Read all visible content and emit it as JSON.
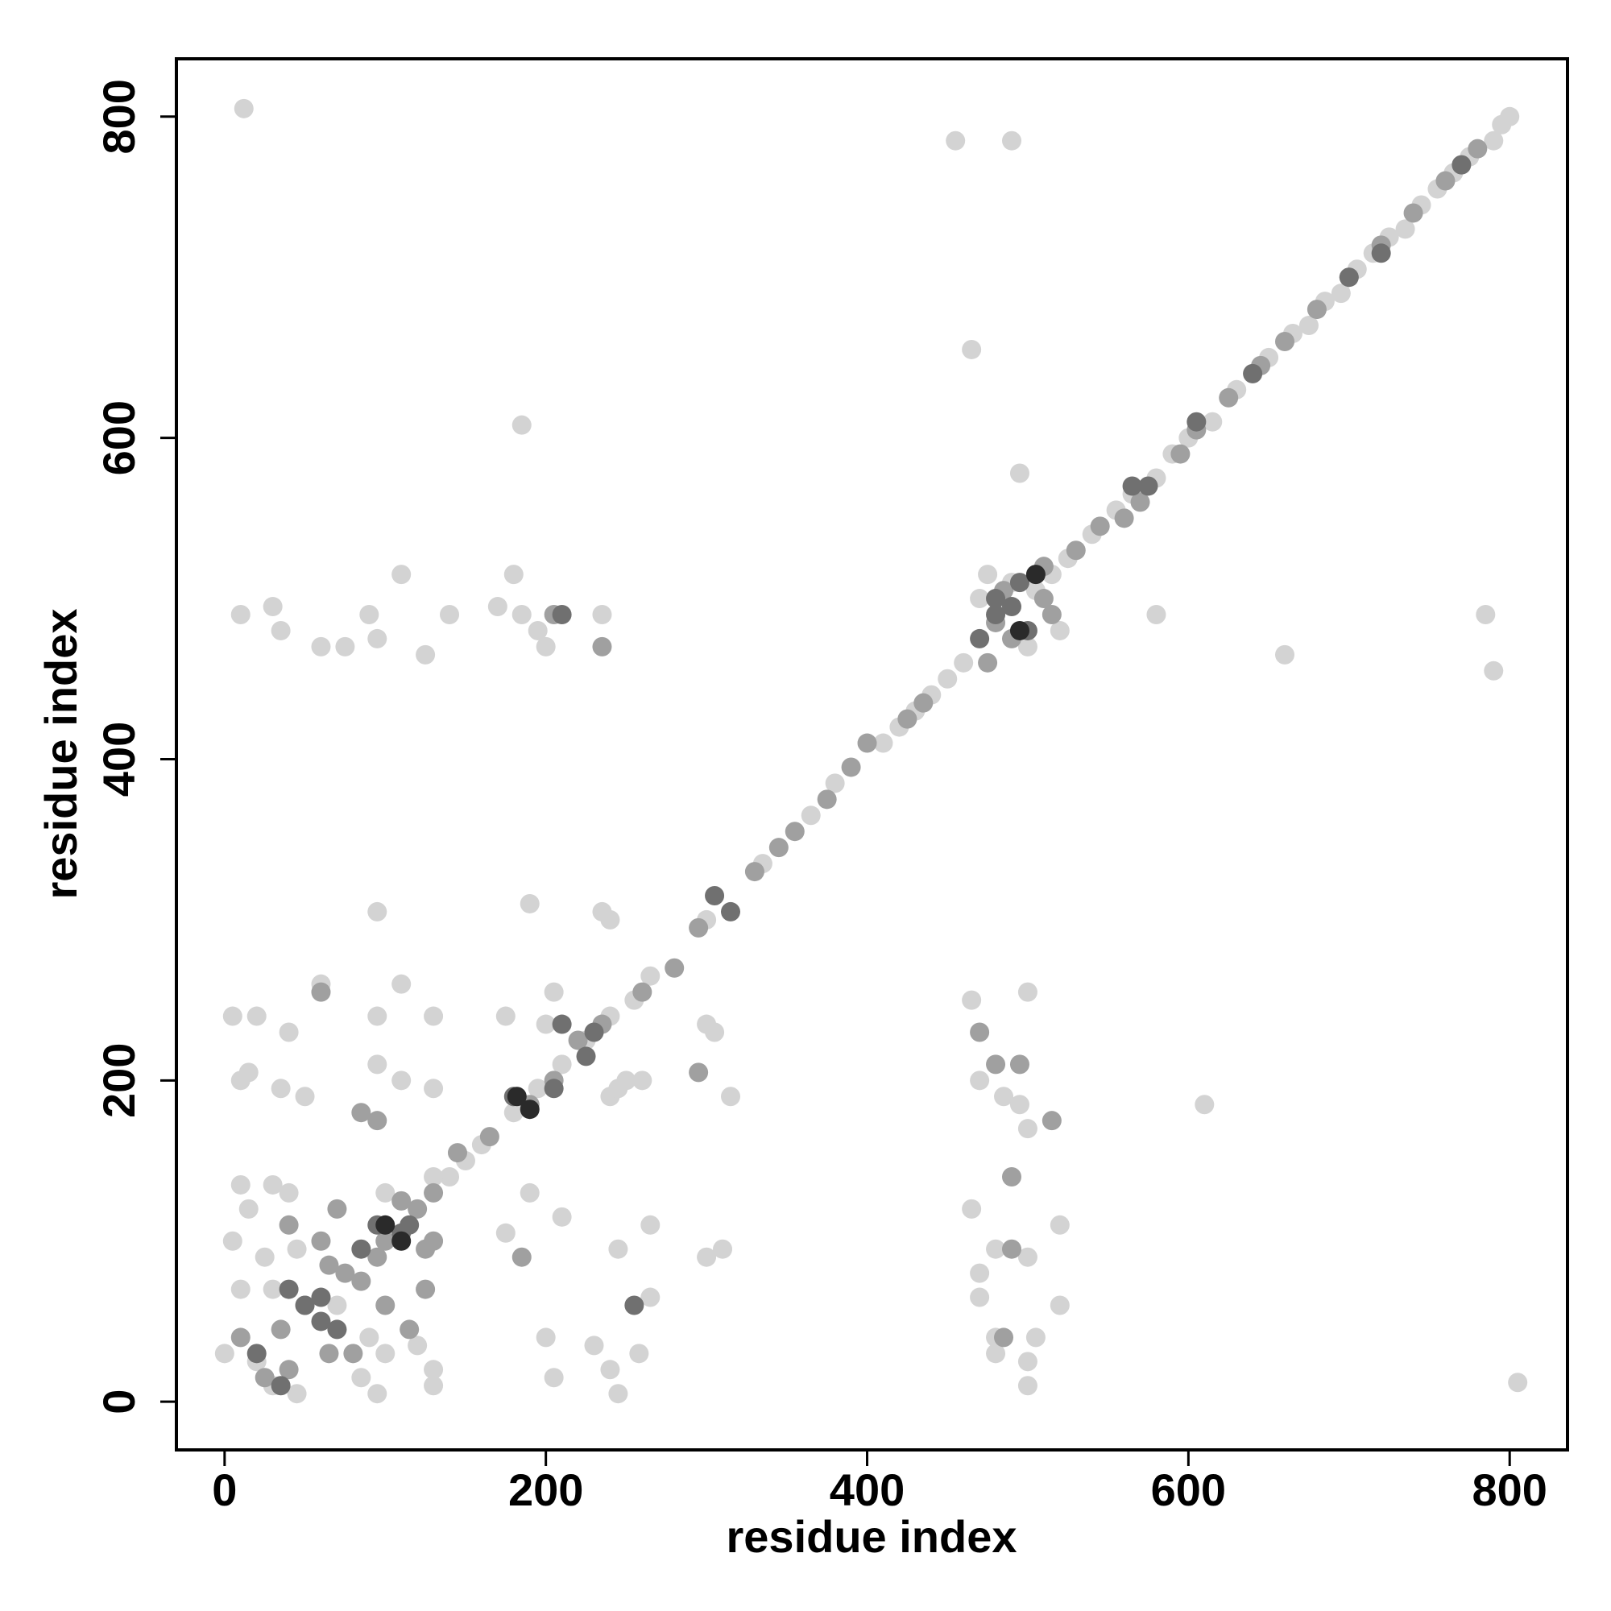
{
  "chart_data": {
    "type": "scatter",
    "xlabel": "residue index",
    "ylabel": "residue index",
    "xlim": [
      -30,
      836
    ],
    "ylim": [
      -30,
      836
    ],
    "xticks": [
      0,
      200,
      400,
      600,
      800
    ],
    "yticks": [
      0,
      200,
      400,
      600,
      800
    ],
    "grid": false,
    "series": [
      {
        "color": "#d3d3d3",
        "x": [
          800,
          795,
          790,
          775,
          765,
          755,
          745,
          735,
          725,
          715,
          705,
          695,
          685,
          675,
          665,
          650,
          640,
          630,
          615,
          600,
          590,
          580,
          565,
          555,
          540,
          525,
          515,
          505,
          490,
          475,
          470,
          500,
          520,
          460,
          450,
          440,
          430,
          420,
          410,
          380,
          365,
          335,
          300,
          265,
          255,
          240,
          225,
          210,
          195,
          180,
          160,
          150,
          140,
          12,
          455,
          490,
          465,
          185,
          495,
          10,
          30,
          35,
          60,
          75,
          90,
          95,
          110,
          125,
          140,
          170,
          180,
          185,
          195,
          200,
          235,
          580,
          660,
          785,
          790,
          95,
          190,
          235,
          240,
          5,
          20,
          40,
          60,
          110,
          130,
          175,
          200,
          205,
          240,
          245,
          250,
          260,
          300,
          305,
          315,
          470,
          485,
          495,
          500,
          610,
          10,
          30,
          15,
          40,
          100,
          130,
          175,
          190,
          210,
          245,
          265,
          300,
          310,
          465,
          470,
          480,
          500,
          520,
          470,
          480,
          500,
          500,
          505,
          480,
          5,
          25,
          45,
          10,
          30,
          70,
          90,
          85,
          100,
          120,
          130,
          200,
          205,
          230,
          240,
          245,
          258,
          0,
          20,
          30,
          45,
          805,
          95,
          130,
          265,
          520,
          465,
          500,
          15,
          10,
          35,
          50,
          95,
          110,
          130,
          95
        ],
        "values": [
          800,
          795,
          785,
          775,
          765,
          755,
          745,
          730,
          725,
          715,
          705,
          690,
          685,
          670,
          665,
          650,
          640,
          630,
          610,
          600,
          590,
          575,
          565,
          555,
          540,
          525,
          515,
          505,
          510,
          515,
          500,
          470,
          480,
          460,
          450,
          440,
          430,
          420,
          410,
          385,
          365,
          335,
          300,
          265,
          250,
          240,
          225,
          210,
          195,
          180,
          160,
          150,
          140,
          805,
          785,
          785,
          655,
          608,
          578,
          490,
          495,
          480,
          470,
          470,
          490,
          475,
          515,
          465,
          490,
          495,
          515,
          490,
          480,
          470,
          490,
          490,
          465,
          490,
          455,
          305,
          310,
          305,
          300,
          240,
          240,
          230,
          260,
          260,
          240,
          240,
          235,
          255,
          190,
          195,
          200,
          200,
          235,
          230,
          190,
          200,
          190,
          185,
          170,
          185,
          135,
          135,
          120,
          130,
          130,
          140,
          105,
          130,
          115,
          95,
          110,
          90,
          95,
          120,
          80,
          95,
          90,
          110,
          65,
          30,
          25,
          10,
          40,
          40,
          100,
          90,
          95,
          70,
          70,
          60,
          40,
          15,
          30,
          35,
          10,
          40,
          15,
          35,
          20,
          5,
          30,
          30,
          25,
          10,
          5,
          12,
          5,
          20,
          65,
          60,
          250,
          255,
          205,
          200,
          195,
          190,
          210,
          200,
          195,
          240
        ]
      },
      {
        "color": "#a0a0a0",
        "x": [
          780,
          760,
          740,
          720,
          700,
          680,
          660,
          645,
          625,
          605,
          595,
          570,
          560,
          545,
          530,
          510,
          485,
          480,
          510,
          515,
          490,
          475,
          435,
          425,
          400,
          390,
          375,
          355,
          345,
          330,
          295,
          280,
          260,
          235,
          220,
          205,
          190,
          165,
          145,
          130,
          110,
          120,
          125,
          95,
          85,
          75,
          60,
          65,
          70,
          40,
          50,
          35,
          40,
          25,
          10,
          65,
          80,
          100,
          115,
          125,
          100,
          130,
          205,
          470,
          495,
          480,
          490,
          485,
          515,
          85,
          95,
          60,
          235,
          295,
          185,
          490
        ],
        "values": [
          780,
          760,
          740,
          720,
          700,
          680,
          660,
          645,
          625,
          605,
          590,
          560,
          550,
          545,
          530,
          520,
          505,
          485,
          500,
          490,
          475,
          460,
          435,
          425,
          410,
          395,
          375,
          355,
          345,
          330,
          295,
          270,
          255,
          235,
          225,
          200,
          185,
          165,
          155,
          130,
          125,
          120,
          95,
          90,
          75,
          80,
          100,
          85,
          120,
          110,
          60,
          45,
          20,
          15,
          40,
          30,
          30,
          60,
          45,
          70,
          100,
          100,
          490,
          230,
          210,
          210,
          95,
          40,
          175,
          180,
          175,
          255,
          470,
          205,
          90,
          140
        ]
      },
      {
        "color": "#707070",
        "x": [
          770,
          720,
          700,
          640,
          605,
          575,
          565,
          500,
          495,
          490,
          480,
          470,
          305,
          315,
          210,
          225,
          230,
          205,
          180,
          40,
          50,
          70,
          60,
          20,
          35,
          95,
          110,
          115,
          85,
          60,
          210,
          255,
          480
        ],
        "values": [
          770,
          715,
          700,
          640,
          610,
          570,
          570,
          480,
          510,
          495,
          490,
          475,
          315,
          305,
          235,
          215,
          230,
          195,
          190,
          70,
          60,
          45,
          50,
          30,
          10,
          110,
          105,
          110,
          95,
          65,
          490,
          60,
          500
        ]
      },
      {
        "color": "#2a2a2a",
        "x": [
          100,
          110,
          182,
          190,
          505,
          495
        ],
        "values": [
          110,
          100,
          190,
          182,
          515,
          480
        ]
      }
    ]
  }
}
